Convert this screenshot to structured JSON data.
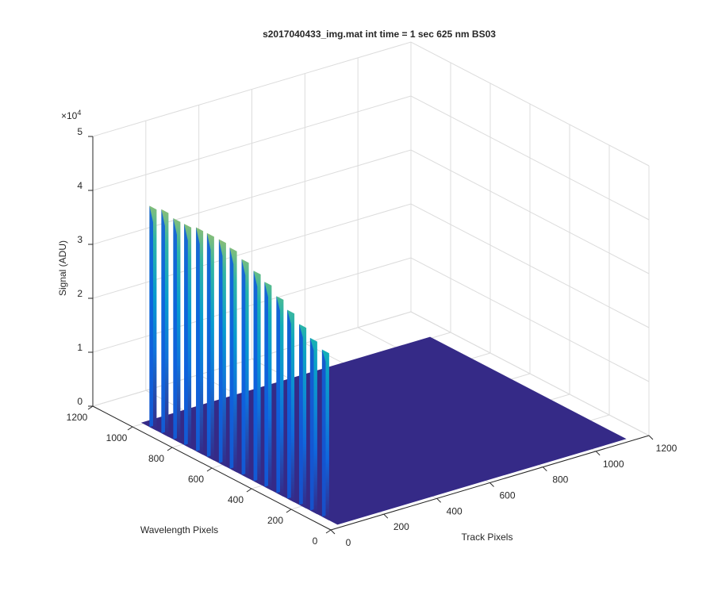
{
  "chart_data": {
    "type": "surface",
    "title": "s2017040433_img.mat int time = 1 sec  625 nm BS03",
    "xlabel": "Track Pixels",
    "ylabel": "Wavelength Pixels",
    "zlabel": "Signal (ADU)",
    "zexponent_label": "×10",
    "zexponent": "4",
    "xlim": [
      0,
      1200
    ],
    "ylim": [
      0,
      1200
    ],
    "zlim": [
      0,
      50000
    ],
    "xticks": [
      "0",
      "200",
      "400",
      "600",
      "800",
      "1000",
      "1200"
    ],
    "yticks": [
      "0",
      "200",
      "400",
      "600",
      "800",
      "1000",
      "1200"
    ],
    "zticks": [
      "0",
      "1",
      "2",
      "3",
      "4",
      "5"
    ],
    "grid": true,
    "colormap": "parula",
    "background_level": 0,
    "peak_track_pixel": 40,
    "peaks": [
      {
        "wavelength_pixel": 80,
        "signal": 31000
      },
      {
        "wavelength_pixel": 140,
        "signal": 32000
      },
      {
        "wavelength_pixel": 195,
        "signal": 33500
      },
      {
        "wavelength_pixel": 255,
        "signal": 35000
      },
      {
        "wavelength_pixel": 310,
        "signal": 36500
      },
      {
        "wavelength_pixel": 370,
        "signal": 38000
      },
      {
        "wavelength_pixel": 425,
        "signal": 39000
      },
      {
        "wavelength_pixel": 485,
        "signal": 40000
      },
      {
        "wavelength_pixel": 545,
        "signal": 41000
      },
      {
        "wavelength_pixel": 600,
        "signal": 41500
      },
      {
        "wavelength_pixel": 660,
        "signal": 41500
      },
      {
        "wavelength_pixel": 715,
        "signal": 41500
      },
      {
        "wavelength_pixel": 775,
        "signal": 41000
      },
      {
        "wavelength_pixel": 830,
        "signal": 41000
      },
      {
        "wavelength_pixel": 890,
        "signal": 41500
      },
      {
        "wavelength_pixel": 950,
        "signal": 41000
      }
    ]
  }
}
